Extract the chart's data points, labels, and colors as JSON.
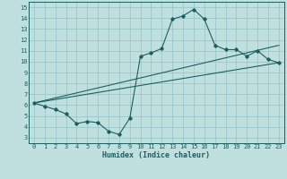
{
  "xlabel": "Humidex (Indice chaleur)",
  "bg_color": "#c0e0e0",
  "grid_color": "#99c8c8",
  "line_color": "#1a6060",
  "spine_color": "#1a6060",
  "xlim": [
    -0.5,
    23.5
  ],
  "ylim": [
    2.5,
    15.5
  ],
  "xticks": [
    0,
    1,
    2,
    3,
    4,
    5,
    6,
    7,
    8,
    9,
    10,
    11,
    12,
    13,
    14,
    15,
    16,
    17,
    18,
    19,
    20,
    21,
    22,
    23
  ],
  "yticks": [
    3,
    4,
    5,
    6,
    7,
    8,
    9,
    10,
    11,
    12,
    13,
    14,
    15
  ],
  "series1_x": [
    0,
    1,
    2,
    3,
    4,
    5,
    6,
    7,
    8,
    9,
    10,
    11,
    12,
    13,
    14,
    15,
    16,
    17,
    18,
    19,
    20,
    21,
    22,
    23
  ],
  "series1_y": [
    6.2,
    5.9,
    5.6,
    5.2,
    4.3,
    4.5,
    4.4,
    3.6,
    3.3,
    4.8,
    10.5,
    10.8,
    11.2,
    13.9,
    14.2,
    14.8,
    13.9,
    11.5,
    11.1,
    11.1,
    10.5,
    11.0,
    10.2,
    9.9
  ],
  "series2_x": [
    0,
    23
  ],
  "series2_y": [
    6.2,
    9.9
  ],
  "series3_x": [
    0,
    23
  ],
  "series3_y": [
    6.2,
    11.5
  ],
  "tick_fontsize": 5.0,
  "xlabel_fontsize": 6.0
}
